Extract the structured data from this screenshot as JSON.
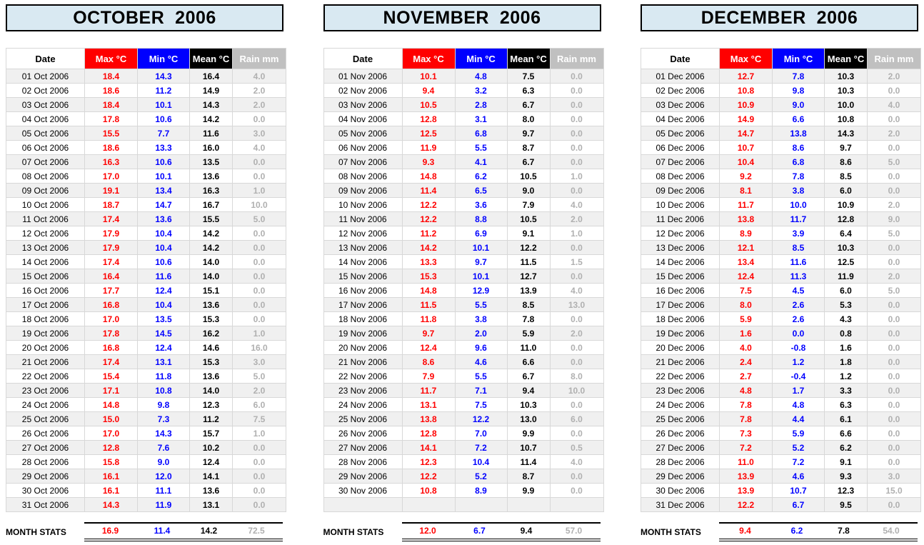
{
  "stats_label": "MONTH STATS",
  "columns": [
    "Date",
    "Max °C",
    "Min °C",
    "Mean °C",
    "Rain mm"
  ],
  "colors": {
    "title_bg": "#d9e9f2",
    "max_header_bg": "#ff0000",
    "min_header_bg": "#0000ff",
    "mean_header_bg": "#000000",
    "rain_header_bg": "#c0c0c0",
    "max_text": "#ff0000",
    "min_text": "#0000ff",
    "mean_text": "#000000",
    "rain_text": "#b0b0b0",
    "stripe_row_bg": "#f0f0f0"
  },
  "months": [
    {
      "title": "OCTOBER  2006",
      "rows": [
        [
          "01 Oct 2006",
          "18.4",
          "14.3",
          "16.4",
          "4.0"
        ],
        [
          "02 Oct 2006",
          "18.6",
          "11.2",
          "14.9",
          "2.0"
        ],
        [
          "03 Oct 2006",
          "18.4",
          "10.1",
          "14.3",
          "2.0"
        ],
        [
          "04 Oct 2006",
          "17.8",
          "10.6",
          "14.2",
          "0.0"
        ],
        [
          "05 Oct 2006",
          "15.5",
          "7.7",
          "11.6",
          "3.0"
        ],
        [
          "06 Oct 2006",
          "18.6",
          "13.3",
          "16.0",
          "4.0"
        ],
        [
          "07 Oct 2006",
          "16.3",
          "10.6",
          "13.5",
          "0.0"
        ],
        [
          "08 Oct 2006",
          "17.0",
          "10.1",
          "13.6",
          "0.0"
        ],
        [
          "09 Oct 2006",
          "19.1",
          "13.4",
          "16.3",
          "1.0"
        ],
        [
          "10 Oct 2006",
          "18.7",
          "14.7",
          "16.7",
          "10.0"
        ],
        [
          "11 Oct 2006",
          "17.4",
          "13.6",
          "15.5",
          "5.0"
        ],
        [
          "12 Oct 2006",
          "17.9",
          "10.4",
          "14.2",
          "0.0"
        ],
        [
          "13 Oct 2006",
          "17.9",
          "10.4",
          "14.2",
          "0.0"
        ],
        [
          "14 Oct 2006",
          "17.4",
          "10.6",
          "14.0",
          "0.0"
        ],
        [
          "15 Oct 2006",
          "16.4",
          "11.6",
          "14.0",
          "0.0"
        ],
        [
          "16 Oct 2006",
          "17.7",
          "12.4",
          "15.1",
          "0.0"
        ],
        [
          "17 Oct 2006",
          "16.8",
          "10.4",
          "13.6",
          "0.0"
        ],
        [
          "18 Oct 2006",
          "17.0",
          "13.5",
          "15.3",
          "0.0"
        ],
        [
          "19 Oct 2006",
          "17.8",
          "14.5",
          "16.2",
          "1.0"
        ],
        [
          "20 Oct 2006",
          "16.8",
          "12.4",
          "14.6",
          "16.0"
        ],
        [
          "21 Oct 2006",
          "17.4",
          "13.1",
          "15.3",
          "3.0"
        ],
        [
          "22 Oct 2006",
          "15.4",
          "11.8",
          "13.6",
          "5.0"
        ],
        [
          "23 Oct 2006",
          "17.1",
          "10.8",
          "14.0",
          "2.0"
        ],
        [
          "24 Oct 2006",
          "14.8",
          "9.8",
          "12.3",
          "6.0"
        ],
        [
          "25 Oct 2006",
          "15.0",
          "7.3",
          "11.2",
          "7.5"
        ],
        [
          "26 Oct 2006",
          "17.0",
          "14.3",
          "15.7",
          "1.0"
        ],
        [
          "27 Oct 2006",
          "12.8",
          "7.6",
          "10.2",
          "0.0"
        ],
        [
          "28 Oct 2006",
          "15.8",
          "9.0",
          "12.4",
          "0.0"
        ],
        [
          "29 Oct 2006",
          "16.1",
          "12.0",
          "14.1",
          "0.0"
        ],
        [
          "30 Oct 2006",
          "16.1",
          "11.1",
          "13.6",
          "0.0"
        ],
        [
          "31 Oct 2006",
          "14.3",
          "11.9",
          "13.1",
          "0.0"
        ]
      ],
      "stats": [
        "16.9",
        "11.4",
        "14.2",
        "72.5"
      ]
    },
    {
      "title": "NOVEMBER  2006",
      "rows": [
        [
          "01 Nov 2006",
          "10.1",
          "4.8",
          "7.5",
          "0.0"
        ],
        [
          "02 Nov 2006",
          "9.4",
          "3.2",
          "6.3",
          "0.0"
        ],
        [
          "03 Nov 2006",
          "10.5",
          "2.8",
          "6.7",
          "0.0"
        ],
        [
          "04 Nov 2006",
          "12.8",
          "3.1",
          "8.0",
          "0.0"
        ],
        [
          "05 Nov 2006",
          "12.5",
          "6.8",
          "9.7",
          "0.0"
        ],
        [
          "06 Nov 2006",
          "11.9",
          "5.5",
          "8.7",
          "0.0"
        ],
        [
          "07 Nov 2006",
          "9.3",
          "4.1",
          "6.7",
          "0.0"
        ],
        [
          "08 Nov 2006",
          "14.8",
          "6.2",
          "10.5",
          "1.0"
        ],
        [
          "09 Nov 2006",
          "11.4",
          "6.5",
          "9.0",
          "0.0"
        ],
        [
          "10 Nov 2006",
          "12.2",
          "3.6",
          "7.9",
          "4.0"
        ],
        [
          "11 Nov 2006",
          "12.2",
          "8.8",
          "10.5",
          "2.0"
        ],
        [
          "12 Nov 2006",
          "11.2",
          "6.9",
          "9.1",
          "1.0"
        ],
        [
          "13 Nov 2006",
          "14.2",
          "10.1",
          "12.2",
          "0.0"
        ],
        [
          "14 Nov 2006",
          "13.3",
          "9.7",
          "11.5",
          "1.5"
        ],
        [
          "15 Nov 2006",
          "15.3",
          "10.1",
          "12.7",
          "0.0"
        ],
        [
          "16 Nov 2006",
          "14.8",
          "12.9",
          "13.9",
          "4.0"
        ],
        [
          "17 Nov 2006",
          "11.5",
          "5.5",
          "8.5",
          "13.0"
        ],
        [
          "18 Nov 2006",
          "11.8",
          "3.8",
          "7.8",
          "0.0"
        ],
        [
          "19 Nov 2006",
          "9.7",
          "2.0",
          "5.9",
          "2.0"
        ],
        [
          "20 Nov 2006",
          "12.4",
          "9.6",
          "11.0",
          "0.0"
        ],
        [
          "21 Nov 2006",
          "8.6",
          "4.6",
          "6.6",
          "0.0"
        ],
        [
          "22 Nov 2006",
          "7.9",
          "5.5",
          "6.7",
          "8.0"
        ],
        [
          "23 Nov 2006",
          "11.7",
          "7.1",
          "9.4",
          "10.0"
        ],
        [
          "24 Nov 2006",
          "13.1",
          "7.5",
          "10.3",
          "0.0"
        ],
        [
          "25 Nov 2006",
          "13.8",
          "12.2",
          "13.0",
          "6.0"
        ],
        [
          "26 Nov 2006",
          "12.8",
          "7.0",
          "9.9",
          "0.0"
        ],
        [
          "27 Nov 2006",
          "14.1",
          "7.2",
          "10.7",
          "0.5"
        ],
        [
          "28 Nov 2006",
          "12.3",
          "10.4",
          "11.4",
          "4.0"
        ],
        [
          "29 Nov 2006",
          "12.2",
          "5.2",
          "8.7",
          "0.0"
        ],
        [
          "30 Nov 2006",
          "10.8",
          "8.9",
          "9.9",
          "0.0"
        ],
        [
          "",
          "",
          "",
          "",
          ""
        ]
      ],
      "stats": [
        "12.0",
        "6.7",
        "9.4",
        "57.0"
      ]
    },
    {
      "title": "DECEMBER  2006",
      "rows": [
        [
          "01 Dec 2006",
          "12.7",
          "7.8",
          "10.3",
          "2.0"
        ],
        [
          "02 Dec 2006",
          "10.8",
          "9.8",
          "10.3",
          "0.0"
        ],
        [
          "03 Dec 2006",
          "10.9",
          "9.0",
          "10.0",
          "4.0"
        ],
        [
          "04 Dec 2006",
          "14.9",
          "6.6",
          "10.8",
          "0.0"
        ],
        [
          "05 Dec 2006",
          "14.7",
          "13.8",
          "14.3",
          "2.0"
        ],
        [
          "06 Dec 2006",
          "10.7",
          "8.6",
          "9.7",
          "0.0"
        ],
        [
          "07 Dec 2006",
          "10.4",
          "6.8",
          "8.6",
          "5.0"
        ],
        [
          "08 Dec 2006",
          "9.2",
          "7.8",
          "8.5",
          "0.0"
        ],
        [
          "09 Dec 2006",
          "8.1",
          "3.8",
          "6.0",
          "0.0"
        ],
        [
          "10 Dec 2006",
          "11.7",
          "10.0",
          "10.9",
          "2.0"
        ],
        [
          "11 Dec 2006",
          "13.8",
          "11.7",
          "12.8",
          "9.0"
        ],
        [
          "12 Dec 2006",
          "8.9",
          "3.9",
          "6.4",
          "5.0"
        ],
        [
          "13 Dec 2006",
          "12.1",
          "8.5",
          "10.3",
          "0.0"
        ],
        [
          "14 Dec 2006",
          "13.4",
          "11.6",
          "12.5",
          "0.0"
        ],
        [
          "15 Dec 2006",
          "12.4",
          "11.3",
          "11.9",
          "2.0"
        ],
        [
          "16 Dec 2006",
          "7.5",
          "4.5",
          "6.0",
          "5.0"
        ],
        [
          "17 Dec 2006",
          "8.0",
          "2.6",
          "5.3",
          "0.0"
        ],
        [
          "18 Dec 2006",
          "5.9",
          "2.6",
          "4.3",
          "0.0"
        ],
        [
          "19 Dec 2006",
          "1.6",
          "0.0",
          "0.8",
          "0.0"
        ],
        [
          "20 Dec 2006",
          "4.0",
          "-0.8",
          "1.6",
          "0.0"
        ],
        [
          "21 Dec 2006",
          "2.4",
          "1.2",
          "1.8",
          "0.0"
        ],
        [
          "22 Dec 2006",
          "2.7",
          "-0.4",
          "1.2",
          "0.0"
        ],
        [
          "23 Dec 2006",
          "4.8",
          "1.7",
          "3.3",
          "0.0"
        ],
        [
          "24 Dec 2006",
          "7.8",
          "4.8",
          "6.3",
          "0.0"
        ],
        [
          "25 Dec 2006",
          "7.8",
          "4.4",
          "6.1",
          "0.0"
        ],
        [
          "26 Dec 2006",
          "7.3",
          "5.9",
          "6.6",
          "0.0"
        ],
        [
          "27 Dec 2006",
          "7.2",
          "5.2",
          "6.2",
          "0.0"
        ],
        [
          "28 Dec 2006",
          "11.0",
          "7.2",
          "9.1",
          "0.0"
        ],
        [
          "29 Dec 2006",
          "13.9",
          "4.6",
          "9.3",
          "3.0"
        ],
        [
          "30 Dec 2006",
          "13.9",
          "10.7",
          "12.3",
          "15.0"
        ],
        [
          "31 Dec 2006",
          "12.2",
          "6.7",
          "9.5",
          "0.0"
        ]
      ],
      "stats": [
        "9.4",
        "6.2",
        "7.8",
        "54.0"
      ]
    }
  ]
}
